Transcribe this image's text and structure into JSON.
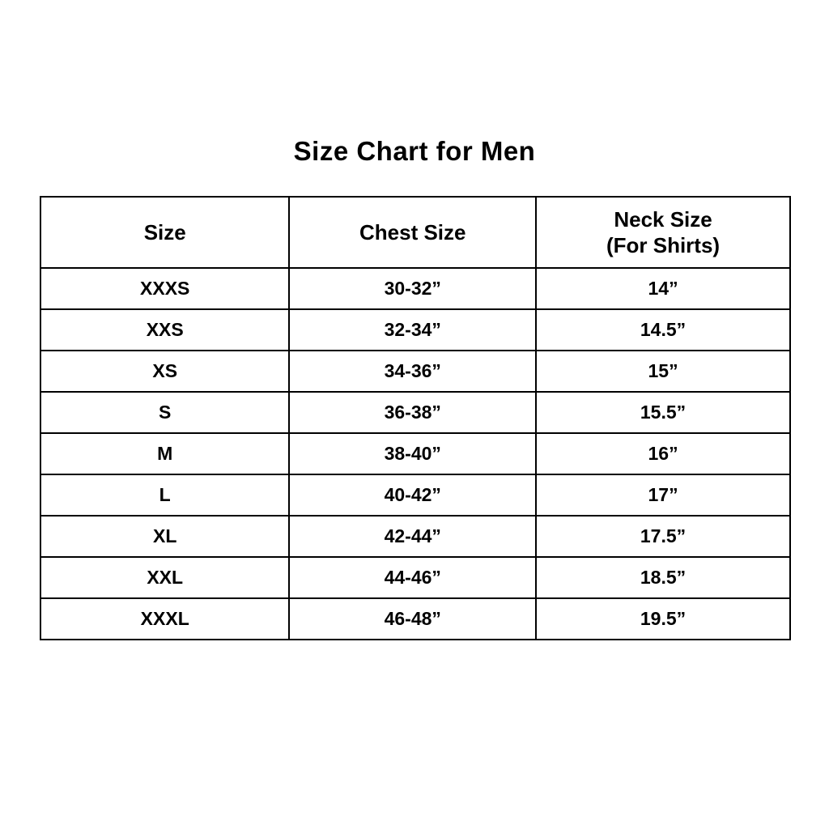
{
  "page": {
    "background_color": "#ffffff",
    "text_color": "#000000",
    "border_color": "#000000"
  },
  "title": "Size Chart for Men",
  "chart_data": {
    "type": "table",
    "title": "Size Chart for Men",
    "header": {
      "col1": "Size",
      "col2": "Chest Size",
      "col3_line1": "Neck Size",
      "col3_line2": "(For Shirts)"
    },
    "columns": [
      "Size",
      "Chest Size",
      "Neck Size (For Shirts)"
    ],
    "rows": [
      [
        "XXXS",
        "30-32”",
        "14”"
      ],
      [
        "XXS",
        "32-34”",
        "14.5”"
      ],
      [
        "XS",
        "34-36”",
        "15”"
      ],
      [
        "S",
        "36-38”",
        "15.5”"
      ],
      [
        "M",
        "38-40”",
        "16”"
      ],
      [
        "L",
        "40-42”",
        "17”"
      ],
      [
        "XL",
        "42-44”",
        "17.5”"
      ],
      [
        "XXL",
        "44-46”",
        "18.5”"
      ],
      [
        "XXXL",
        "46-48”",
        "19.5”"
      ]
    ],
    "layout": {
      "grid": "black 2px solid borders",
      "alignment": "center",
      "header_row_two_line_third_column": true
    }
  }
}
